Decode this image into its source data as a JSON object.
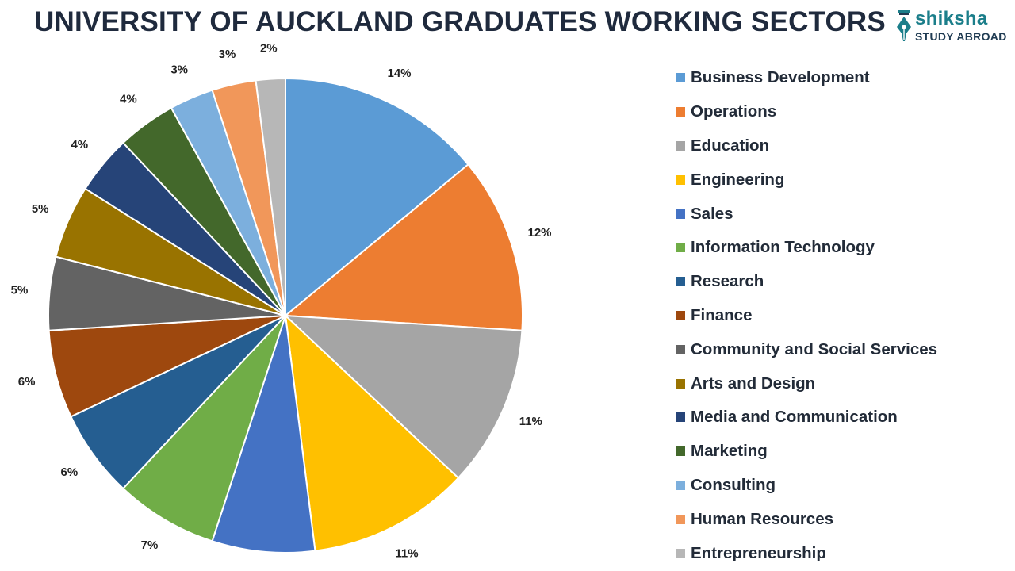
{
  "header": {
    "title": "UNIVERSITY OF AUCKLAND GRADUATES WORKING SECTORS",
    "logo_brand": "shiksha",
    "logo_sub": "STUDY ABROAD",
    "logo_icon": "fountain-pen-nib-icon",
    "brand_color": "#1b7e8a"
  },
  "chart_data": {
    "type": "pie",
    "title": "UNIVERSITY OF AUCKLAND GRADUATES WORKING SECTORS",
    "legend_position": "right",
    "start": "top, clockwise",
    "slices": [
      {
        "name": "Business Development",
        "value": 14,
        "label": "14%",
        "color": "#5b9bd5"
      },
      {
        "name": "Operations",
        "value": 12,
        "label": "12%",
        "color": "#ed7d31"
      },
      {
        "name": "Education",
        "value": 11,
        "label": "11%",
        "color": "#a5a5a5"
      },
      {
        "name": "Engineering",
        "value": 11,
        "label": "11%",
        "color": "#ffc000"
      },
      {
        "name": "Sales",
        "value": 7,
        "label": "7%",
        "color": "#4472c4"
      },
      {
        "name": "Information Technology",
        "value": 7,
        "label": "7%",
        "color": "#70ad47"
      },
      {
        "name": "Research",
        "value": 6,
        "label": "6%",
        "color": "#255e91"
      },
      {
        "name": "Finance",
        "value": 6,
        "label": "6%",
        "color": "#9e480e"
      },
      {
        "name": "Community and Social Services",
        "value": 5,
        "label": "5%",
        "color": "#636363"
      },
      {
        "name": "Arts and Design",
        "value": 5,
        "label": "5%",
        "color": "#997300"
      },
      {
        "name": "Media and Communication",
        "value": 4,
        "label": "4%",
        "color": "#264478"
      },
      {
        "name": "Marketing",
        "value": 4,
        "label": "4%",
        "color": "#43682b"
      },
      {
        "name": "Consulting",
        "value": 3,
        "label": "3%",
        "color": "#7cafdd"
      },
      {
        "name": "Human Resources",
        "value": 3,
        "label": "3%",
        "color": "#f1975a"
      },
      {
        "name": "Entrepreneurship",
        "value": 2,
        "label": "2%",
        "color": "#b7b7b7"
      }
    ]
  }
}
